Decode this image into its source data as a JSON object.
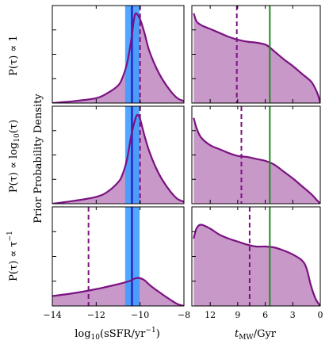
{
  "colors": {
    "fill": "#c898c8",
    "curve": "#7b1282",
    "band": "#3a9cff",
    "median": "#2929c8",
    "green": "#1f8a1f"
  },
  "labels": {
    "ylabel": "Prior Probability Density",
    "xlabel_left_pre": "log",
    "xlabel_left_sub": "10",
    "xlabel_left_post": "(sSFR/yr",
    "xlabel_left_sup": "−1",
    "xlabel_left_end": ")",
    "xlabel_right_main": "t",
    "xlabel_right_sub": "MW",
    "xlabel_right_post": "/Gyr",
    "rows": [
      {
        "pre": "P(τ) ∝ ",
        "main": "1",
        "sub": "",
        "sup": "",
        "post": ""
      },
      {
        "pre": "P(τ) ∝ ",
        "main": "log",
        "sub": "10",
        "sup": "",
        "post": "(τ)"
      },
      {
        "pre": "P(τ) ∝ ",
        "main": "τ",
        "sub": "",
        "sup": "−1",
        "post": ""
      }
    ]
  },
  "chart_data": [
    {
      "type": "area",
      "column": "ssfr",
      "xlim": [
        -14,
        -8
      ],
      "ylim": [
        0,
        1
      ],
      "x": [
        -14,
        -13,
        -12,
        -11.5,
        -11,
        -10.8,
        -10.6,
        -10.4,
        -10.3,
        -10.2,
        -10.0,
        -9.8,
        -9.6,
        -9.3,
        -9.0,
        -8.6,
        -8.3,
        -8
      ],
      "y": [
        0.0,
        0.02,
        0.05,
        0.1,
        0.18,
        0.26,
        0.4,
        0.65,
        0.82,
        0.92,
        0.86,
        0.72,
        0.55,
        0.38,
        0.25,
        0.12,
        0.05,
        0.02
      ],
      "dashed_x": -10.0,
      "band_x": [
        -10.68,
        -10.02
      ],
      "median_x": -10.37
    },
    {
      "type": "area",
      "column": "ssfr",
      "xlim": [
        -14,
        -8
      ],
      "ylim": [
        0,
        1
      ],
      "x": [
        -14,
        -13,
        -12,
        -11.5,
        -11,
        -10.8,
        -10.6,
        -10.4,
        -10.2,
        -10.1,
        -10.0,
        -9.8,
        -9.6,
        -9.3,
        -9.0,
        -8.6,
        -8.3,
        -8
      ],
      "y": [
        0.0,
        0.03,
        0.07,
        0.12,
        0.22,
        0.3,
        0.45,
        0.7,
        0.88,
        0.91,
        0.87,
        0.7,
        0.55,
        0.38,
        0.25,
        0.12,
        0.05,
        0.02
      ],
      "dashed_x": -10.0,
      "band_x": [
        -10.68,
        -10.02
      ],
      "median_x": -10.37
    },
    {
      "type": "area",
      "column": "ssfr",
      "xlim": [
        -14,
        -8
      ],
      "ylim": [
        0,
        1
      ],
      "x": [
        -14,
        -13,
        -12,
        -11,
        -10.5,
        -10.2,
        -10.0,
        -9.8,
        -9.5,
        -9.0,
        -8.6,
        -8.3,
        -8
      ],
      "y": [
        0.1,
        0.13,
        0.17,
        0.22,
        0.25,
        0.28,
        0.28,
        0.26,
        0.2,
        0.12,
        0.06,
        0.02,
        0.0
      ],
      "dashed_x": -12.35,
      "band_x": [
        -10.68,
        -10.02
      ],
      "median_x": -10.37
    },
    {
      "type": "area",
      "column": "tmw",
      "xlim": [
        14,
        0
      ],
      "ylim": [
        0,
        1
      ],
      "x": [
        13.8,
        13.5,
        13.0,
        12.0,
        11.0,
        10.0,
        9.0,
        8.0,
        7.0,
        6.0,
        5.5,
        5.0,
        4.0,
        3.0,
        2.0,
        1.0,
        0.5,
        0.2,
        0.0
      ],
      "y": [
        0.92,
        0.84,
        0.8,
        0.76,
        0.72,
        0.68,
        0.65,
        0.63,
        0.62,
        0.6,
        0.57,
        0.53,
        0.45,
        0.38,
        0.3,
        0.22,
        0.14,
        0.07,
        0.0
      ],
      "dashed_x": 9.1,
      "green_x": 5.5
    },
    {
      "type": "area",
      "column": "tmw",
      "xlim": [
        14,
        0
      ],
      "ylim": [
        0,
        1
      ],
      "x": [
        13.8,
        13.5,
        13.0,
        12.0,
        11.0,
        10.0,
        9.0,
        8.0,
        7.0,
        6.0,
        5.0,
        4.0,
        3.0,
        2.0,
        1.0,
        0.5,
        0.2,
        0.0
      ],
      "y": [
        0.88,
        0.78,
        0.68,
        0.6,
        0.56,
        0.52,
        0.49,
        0.48,
        0.46,
        0.44,
        0.4,
        0.33,
        0.26,
        0.18,
        0.1,
        0.05,
        0.02,
        0.0
      ],
      "dashed_x": 8.6,
      "green_x": 5.5
    },
    {
      "type": "area",
      "column": "tmw",
      "xlim": [
        14,
        0
      ],
      "ylim": [
        0,
        1
      ],
      "x": [
        13.8,
        13.5,
        13.0,
        12.0,
        11.0,
        10.0,
        9.0,
        8.0,
        7.0,
        6.0,
        5.0,
        4.0,
        3.0,
        2.0,
        1.5,
        1.0,
        0.5,
        0.0
      ],
      "y": [
        0.68,
        0.78,
        0.82,
        0.78,
        0.72,
        0.68,
        0.65,
        0.62,
        0.6,
        0.6,
        0.59,
        0.56,
        0.52,
        0.46,
        0.38,
        0.2,
        0.07,
        0.0
      ],
      "dashed_x": 7.7,
      "green_x": 5.5
    }
  ],
  "ticks": {
    "ssfr": [
      {
        "v": -14,
        "label": "−14"
      },
      {
        "v": -12,
        "label": "−12"
      },
      {
        "v": -10,
        "label": "−10"
      },
      {
        "v": -8,
        "label": "−8"
      }
    ],
    "tmw": [
      {
        "v": 12,
        "label": "12"
      },
      {
        "v": 9,
        "label": "9"
      },
      {
        "v": 6,
        "label": "6"
      },
      {
        "v": 3,
        "label": "3"
      },
      {
        "v": 0,
        "label": "0"
      }
    ]
  }
}
